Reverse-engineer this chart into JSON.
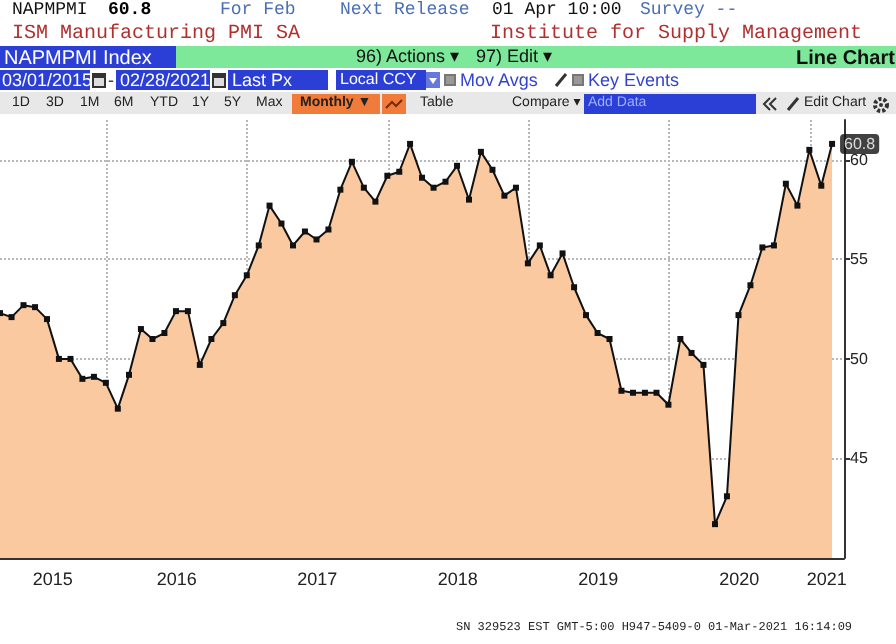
{
  "chart_data": {
    "type": "area",
    "title": "ISM Manufacturing PMI SA",
    "subtitle": "Institute for Supply Management",
    "x": [
      "2015-03-31",
      "2015-04-30",
      "2015-05-31",
      "2015-06-30",
      "2015-07-31",
      "2015-08-31",
      "2015-09-30",
      "2015-10-31",
      "2015-11-30",
      "2015-12-31",
      "2016-01-31",
      "2016-02-29",
      "2016-03-31",
      "2016-04-30",
      "2016-05-31",
      "2016-06-30",
      "2016-07-31",
      "2016-08-31",
      "2016-09-30",
      "2016-10-31",
      "2016-11-30",
      "2016-12-31",
      "2017-01-31",
      "2017-02-28",
      "2017-03-31",
      "2017-04-30",
      "2017-05-31",
      "2017-06-30",
      "2017-07-31",
      "2017-08-31",
      "2017-09-30",
      "2017-10-31",
      "2017-11-30",
      "2017-12-31",
      "2018-01-31",
      "2018-02-28",
      "2018-03-31",
      "2018-04-30",
      "2018-05-31",
      "2018-06-30",
      "2018-07-31",
      "2018-08-31",
      "2018-09-30",
      "2018-10-31",
      "2018-11-30",
      "2018-12-31",
      "2019-01-31",
      "2019-02-28",
      "2019-03-31",
      "2019-04-30",
      "2019-05-31",
      "2019-06-30",
      "2019-07-31",
      "2019-08-31",
      "2019-09-30",
      "2019-10-31",
      "2019-11-30",
      "2019-12-31",
      "2020-01-31",
      "2020-02-29",
      "2020-03-31",
      "2020-04-30",
      "2020-05-31",
      "2020-06-30",
      "2020-07-31",
      "2020-08-31",
      "2020-09-30",
      "2020-10-31",
      "2020-11-30",
      "2020-12-31",
      "2021-01-31",
      "2021-02-28"
    ],
    "series": [
      {
        "color": "#fbc9a0",
        "values": [
          52.3,
          52.1,
          52.7,
          52.6,
          52.0,
          50.0,
          50.0,
          49.0,
          49.1,
          48.8,
          47.5,
          49.2,
          51.5,
          51.0,
          51.3,
          52.4,
          52.4,
          49.7,
          51.0,
          51.8,
          53.2,
          54.2,
          55.7,
          57.7,
          56.8,
          55.7,
          56.4,
          56.0,
          56.5,
          58.5,
          59.9,
          58.6,
          57.9,
          59.2,
          59.4,
          60.8,
          59.1,
          58.6,
          58.9,
          59.7,
          58.0,
          60.4,
          59.5,
          58.2,
          58.6,
          54.8,
          55.7,
          54.2,
          55.3,
          53.6,
          52.2,
          51.3,
          51.0,
          48.4,
          48.3,
          48.3,
          48.3,
          47.7,
          51.0,
          50.3,
          49.7,
          41.7,
          43.1,
          52.2,
          53.7,
          55.6,
          55.7,
          58.8,
          57.7,
          60.5,
          58.7,
          60.8
        ]
      }
    ],
    "xlim": [
      "2015-03-31",
      "2021-03-31"
    ],
    "xticks": [
      {
        "value": "2015-08-15",
        "label": "2015"
      },
      {
        "value": "2016-01-01",
        "label": null
      },
      {
        "value": "2016-07-02",
        "label": "2016"
      },
      {
        "value": "2017-01-01",
        "label": null
      },
      {
        "value": "2017-07-02",
        "label": "2017"
      },
      {
        "value": "2018-01-01",
        "label": null
      },
      {
        "value": "2018-07-02",
        "label": "2018"
      },
      {
        "value": "2019-01-01",
        "label": null
      },
      {
        "value": "2019-07-02",
        "label": "2019"
      },
      {
        "value": "2020-01-01",
        "label": null
      },
      {
        "value": "2020-07-02",
        "label": "2020"
      },
      {
        "value": "2021-01-01",
        "label": null
      },
      {
        "value": "2021-02-14",
        "label": "2021"
      }
    ],
    "ylim": [
      40,
      62
    ],
    "yticks": [
      45,
      50,
      55,
      60
    ],
    "grid": true,
    "marker": "square",
    "line_style": "solid",
    "annotations": [
      "NAPMPMI",
      "60.8",
      "For Feb",
      "Next Release",
      "01 Apr 10:00",
      "Survey --",
      "NAPMPMI Index",
      "96) Actions ▾",
      "97) Edit ▾",
      "Line Chart",
      "03/01/2015",
      "-",
      "02/28/2021",
      "Last Px",
      "Local CCY",
      "Mov Avgs",
      "Key Events",
      "1D",
      "3D",
      "1M",
      "6M",
      "YTD",
      "1Y",
      "5Y",
      "Max",
      "Monthly ▼",
      "Table",
      "Compare ▾",
      "Add Data",
      "Edit Chart",
      "SN 329523 EST GMT-5:00 H947-5409-0 01-Mar-2021 16:14:09",
      {
        "text": "60.8",
        "x": "2021-02-28",
        "y": 60.8
      }
    ]
  }
}
